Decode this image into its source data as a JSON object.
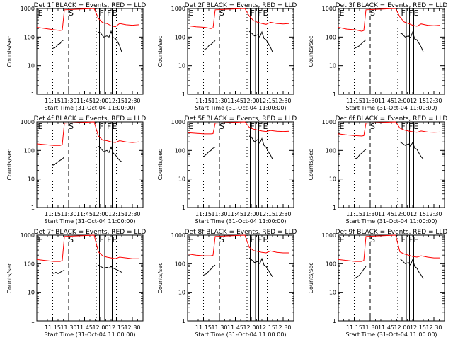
{
  "common": {
    "xlabel": "Start Time (31-Oct-04 11:00:00)",
    "ylabel": "Counts/sec",
    "xtick_labels": [
      "11:15",
      "11:30",
      "11:45",
      "12:00",
      "12:15",
      "12:30"
    ],
    "ytick_labels": [
      "1",
      "10",
      "100",
      "1000"
    ],
    "colors": {
      "events": "#000000",
      "lld": "#ff0000"
    }
  },
  "chart_data": [
    {
      "type": "line",
      "title": "Det 1f BLACK = Events, RED = LLD",
      "x_range": [
        "11:00",
        "12:40"
      ],
      "y_range": [
        1,
        1000
      ],
      "y_scale": "log",
      "marker_labels": [
        "E",
        "S",
        "F",
        "F",
        "E"
      ],
      "series": [
        {
          "color": "red",
          "x": [
            "11:00",
            "11:08",
            "11:16",
            "11:22",
            "11:24",
            "11:26",
            "11:54",
            "11:58",
            "12:02",
            "12:06",
            "12:10",
            "12:14",
            "12:18",
            "12:24",
            "12:30",
            "12:36"
          ],
          "y": [
            220,
            200,
            180,
            170,
            175,
            900,
            1000,
            450,
            320,
            300,
            250,
            230,
            300,
            270,
            260,
            270
          ]
        },
        {
          "color": "black",
          "x": [
            "11:15",
            "11:18",
            "11:20",
            "11:22",
            "11:24",
            "11:26",
            "11:58",
            "12:00",
            "12:03",
            "12:06",
            "12:08",
            "12:10",
            "12:12",
            "12:14",
            "12:16",
            "12:18",
            "12:20"
          ],
          "y": [
            40,
            45,
            55,
            60,
            75,
            80,
            150,
            140,
            100,
            110,
            100,
            160,
            95,
            90,
            70,
            50,
            30
          ]
        }
      ]
    },
    {
      "type": "line",
      "title": "Det 2f BLACK = Events, RED = LLD",
      "x_range": [
        "11:00",
        "12:40"
      ],
      "y_range": [
        1,
        1000
      ],
      "y_scale": "log",
      "marker_labels": [
        "E",
        "S",
        "F",
        "F",
        "E"
      ],
      "series": [
        {
          "color": "red",
          "x": [
            "11:00",
            "11:08",
            "11:16",
            "11:22",
            "11:24",
            "11:26",
            "11:54",
            "11:58",
            "12:02",
            "12:06",
            "12:10",
            "12:14",
            "12:18",
            "12:24",
            "12:30",
            "12:36"
          ],
          "y": [
            250,
            230,
            220,
            200,
            210,
            900,
            1000,
            550,
            380,
            330,
            300,
            280,
            330,
            300,
            290,
            300
          ]
        },
        {
          "color": "black",
          "x": [
            "11:15",
            "11:18",
            "11:20",
            "11:22",
            "11:24",
            "11:26",
            "11:58",
            "12:00",
            "12:03",
            "12:06",
            "12:08",
            "12:10",
            "12:12",
            "12:14",
            "12:16",
            "12:18",
            "12:20"
          ],
          "y": [
            35,
            40,
            50,
            55,
            65,
            75,
            160,
            140,
            110,
            120,
            100,
            150,
            90,
            80,
            60,
            45,
            30
          ]
        }
      ]
    },
    {
      "type": "line",
      "title": "Det 3f BLACK = Events, RED = LLD",
      "x_range": [
        "11:00",
        "12:40"
      ],
      "y_range": [
        1,
        1000
      ],
      "y_scale": "log",
      "marker_labels": [
        "E",
        "S",
        "F",
        "F",
        "E"
      ],
      "series": [
        {
          "color": "red",
          "x": [
            "11:00",
            "11:08",
            "11:16",
            "11:22",
            "11:24",
            "11:26",
            "11:54",
            "11:58",
            "12:02",
            "12:06",
            "12:10",
            "12:14",
            "12:18",
            "12:24",
            "12:30",
            "12:36"
          ],
          "y": [
            220,
            190,
            180,
            160,
            170,
            900,
            1000,
            500,
            340,
            300,
            260,
            240,
            290,
            260,
            250,
            260
          ]
        },
        {
          "color": "black",
          "x": [
            "11:15",
            "11:18",
            "11:20",
            "11:22",
            "11:24",
            "11:26",
            "11:58",
            "12:00",
            "12:03",
            "12:06",
            "12:08",
            "12:10",
            "12:12",
            "12:14",
            "12:16",
            "12:18",
            "12:20"
          ],
          "y": [
            40,
            45,
            50,
            60,
            70,
            80,
            140,
            130,
            100,
            110,
            95,
            150,
            85,
            80,
            60,
            45,
            30
          ]
        }
      ]
    },
    {
      "type": "line",
      "title": "Det 4f BLACK = Events, RED = LLD",
      "x_range": [
        "11:00",
        "12:40"
      ],
      "y_range": [
        1,
        1000
      ],
      "y_scale": "log",
      "marker_labels": [
        "E",
        "S",
        "F",
        "F",
        "E"
      ],
      "series": [
        {
          "color": "red",
          "x": [
            "11:00",
            "11:08",
            "11:16",
            "11:22",
            "11:24",
            "11:26",
            "11:54",
            "11:58",
            "12:02",
            "12:06",
            "12:10",
            "12:14",
            "12:18",
            "12:24",
            "12:30",
            "12:36"
          ],
          "y": [
            170,
            160,
            150,
            150,
            160,
            900,
            1000,
            320,
            230,
            220,
            200,
            190,
            220,
            200,
            190,
            200
          ]
        },
        {
          "color": "black",
          "x": [
            "11:15",
            "11:18",
            "11:20",
            "11:22",
            "11:24",
            "11:26",
            "11:58",
            "12:00",
            "12:03",
            "12:06",
            "12:08",
            "12:10",
            "12:12",
            "12:14",
            "12:16",
            "12:18",
            "12:20"
          ],
          "y": [
            30,
            35,
            40,
            45,
            50,
            60,
            140,
            120,
            90,
            100,
            85,
            130,
            80,
            70,
            55,
            45,
            40
          ]
        }
      ]
    },
    {
      "type": "line",
      "title": "Det 5f BLACK = Events, RED = LLD",
      "x_range": [
        "11:00",
        "12:40"
      ],
      "y_range": [
        1,
        1000
      ],
      "y_scale": "log",
      "marker_labels": [
        "E",
        "S",
        "F",
        "F",
        "E"
      ],
      "series": [
        {
          "color": "red",
          "x": [
            "11:00",
            "11:08",
            "11:16",
            "11:22",
            "11:24",
            "11:26",
            "11:54",
            "11:58",
            "12:02",
            "12:06",
            "12:10",
            "12:14",
            "12:18",
            "12:24",
            "12:30",
            "12:36"
          ],
          "y": [
            420,
            400,
            380,
            380,
            390,
            900,
            1000,
            650,
            560,
            520,
            480,
            460,
            500,
            470,
            460,
            470
          ]
        },
        {
          "color": "black",
          "x": [
            "11:15",
            "11:18",
            "11:20",
            "11:22",
            "11:24",
            "11:26",
            "11:58",
            "12:00",
            "12:03",
            "12:06",
            "12:08",
            "12:10",
            "12:12",
            "12:14",
            "12:16",
            "12:18",
            "12:20"
          ],
          "y": [
            60,
            75,
            90,
            100,
            120,
            130,
            320,
            300,
            200,
            240,
            180,
            260,
            150,
            130,
            90,
            70,
            50
          ]
        }
      ]
    },
    {
      "type": "line",
      "title": "Det 6f BLACK = Events, RED = LLD",
      "x_range": [
        "11:00",
        "12:40"
      ],
      "y_range": [
        1,
        1000
      ],
      "y_scale": "log",
      "marker_labels": [
        "E",
        "S",
        "F",
        "F",
        "E"
      ],
      "series": [
        {
          "color": "red",
          "x": [
            "11:00",
            "11:08",
            "11:16",
            "11:22",
            "11:24",
            "11:26",
            "11:54",
            "11:58",
            "12:02",
            "12:06",
            "12:10",
            "12:14",
            "12:18",
            "12:24",
            "12:30",
            "12:36"
          ],
          "y": [
            380,
            350,
            330,
            320,
            330,
            900,
            1000,
            600,
            520,
            480,
            450,
            430,
            480,
            440,
            430,
            440
          ]
        },
        {
          "color": "black",
          "x": [
            "11:15",
            "11:18",
            "11:20",
            "11:22",
            "11:24",
            "11:26",
            "11:58",
            "12:00",
            "12:03",
            "12:06",
            "12:08",
            "12:10",
            "12:12",
            "12:14",
            "12:16",
            "12:18",
            "12:20"
          ],
          "y": [
            50,
            55,
            70,
            80,
            95,
            110,
            200,
            180,
            150,
            170,
            140,
            190,
            120,
            110,
            80,
            60,
            50
          ]
        }
      ]
    },
    {
      "type": "line",
      "title": "Det 7f BLACK = Events, RED = LLD",
      "x_range": [
        "11:00",
        "12:40"
      ],
      "y_range": [
        1,
        1000
      ],
      "y_scale": "log",
      "marker_labels": [
        "E",
        "S",
        "F",
        "F",
        "E"
      ],
      "series": [
        {
          "color": "red",
          "x": [
            "11:00",
            "11:08",
            "11:16",
            "11:22",
            "11:24",
            "11:26",
            "11:54",
            "11:58",
            "12:02",
            "12:06",
            "12:10",
            "12:14",
            "12:18",
            "12:24",
            "12:30",
            "12:36"
          ],
          "y": [
            140,
            130,
            120,
            120,
            130,
            900,
            1000,
            260,
            190,
            170,
            160,
            150,
            170,
            160,
            150,
            150
          ]
        },
        {
          "color": "black",
          "x": [
            "11:15",
            "11:18",
            "11:20",
            "11:22",
            "11:24",
            "11:26",
            "11:58",
            "12:00",
            "12:03",
            "12:06",
            "12:08",
            "12:10",
            "12:12",
            "12:14",
            "12:16",
            "12:18",
            "12:20"
          ],
          "y": [
            45,
            50,
            45,
            50,
            55,
            60,
            90,
            80,
            70,
            75,
            70,
            80,
            70,
            65,
            60,
            55,
            50
          ]
        }
      ]
    },
    {
      "type": "line",
      "title": "Det 8f BLACK = Events, RED = LLD",
      "x_range": [
        "11:00",
        "12:40"
      ],
      "y_range": [
        1,
        1000
      ],
      "y_scale": "log",
      "marker_labels": [
        "E",
        "S",
        "F",
        "F",
        "E"
      ],
      "series": [
        {
          "color": "red",
          "x": [
            "11:00",
            "11:08",
            "11:16",
            "11:22",
            "11:24",
            "11:26",
            "11:54",
            "11:58",
            "12:02",
            "12:06",
            "12:10",
            "12:14",
            "12:18",
            "12:24",
            "12:30",
            "12:36"
          ],
          "y": [
            220,
            200,
            190,
            190,
            200,
            900,
            1000,
            380,
            290,
            270,
            250,
            240,
            280,
            250,
            240,
            240
          ]
        },
        {
          "color": "black",
          "x": [
            "11:15",
            "11:18",
            "11:20",
            "11:22",
            "11:24",
            "11:26",
            "11:58",
            "12:00",
            "12:03",
            "12:06",
            "12:08",
            "12:10",
            "12:12",
            "12:14",
            "12:16",
            "12:18",
            "12:20"
          ],
          "y": [
            40,
            45,
            55,
            65,
            80,
            90,
            160,
            140,
            110,
            120,
            100,
            150,
            90,
            80,
            60,
            45,
            35
          ]
        }
      ]
    },
    {
      "type": "line",
      "title": "Det 9f BLACK = Events, RED = LLD",
      "x_range": [
        "11:00",
        "12:40"
      ],
      "y_range": [
        1,
        1000
      ],
      "y_scale": "log",
      "marker_labels": [
        "E",
        "S",
        "F",
        "F",
        "E"
      ],
      "series": [
        {
          "color": "red",
          "x": [
            "11:00",
            "11:08",
            "11:16",
            "11:22",
            "11:24",
            "11:26",
            "11:54",
            "11:58",
            "12:02",
            "12:06",
            "12:10",
            "12:14",
            "12:18",
            "12:24",
            "12:30",
            "12:36"
          ],
          "y": [
            140,
            130,
            120,
            120,
            130,
            900,
            1000,
            260,
            220,
            200,
            180,
            170,
            190,
            170,
            160,
            160
          ]
        },
        {
          "color": "black",
          "x": [
            "11:15",
            "11:18",
            "11:20",
            "11:22",
            "11:24",
            "11:26",
            "11:58",
            "12:00",
            "12:03",
            "12:06",
            "12:08",
            "12:10",
            "12:12",
            "12:14",
            "12:16",
            "12:18",
            "12:20"
          ],
          "y": [
            30,
            35,
            40,
            50,
            65,
            80,
            150,
            130,
            100,
            110,
            90,
            140,
            80,
            70,
            50,
            40,
            30
          ]
        }
      ]
    }
  ]
}
